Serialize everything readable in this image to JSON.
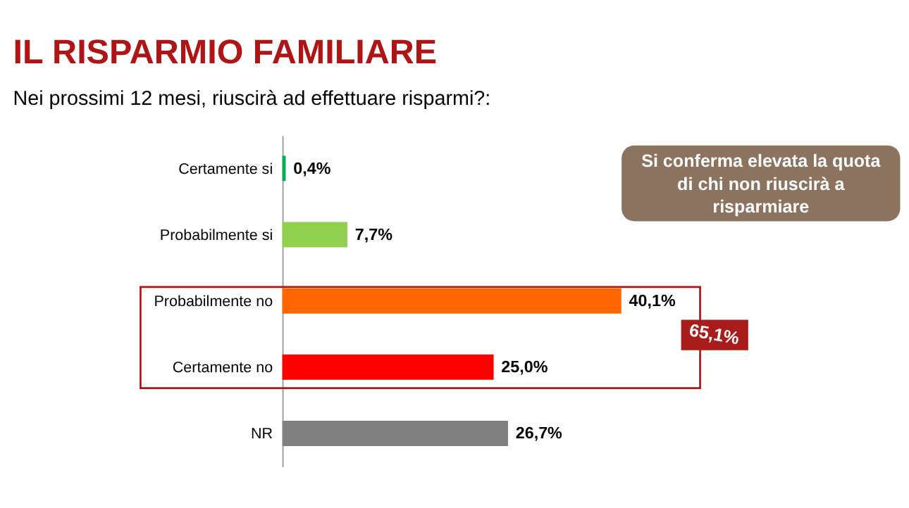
{
  "chart_data": {
    "type": "bar",
    "orientation": "horizontal",
    "title": "IL RISPARMIO FAMILIARE",
    "subtitle": "Nei prossimi 12 mesi, riuscirà ad effettuare risparmi?:",
    "categories": [
      "Certamente si",
      "Probabilmente si",
      "Probabilmente no",
      "Certamente no",
      "NR"
    ],
    "values": [
      0.4,
      7.7,
      40.1,
      25.0,
      26.7
    ],
    "colors": [
      "#00b050",
      "#92d050",
      "#ff6600",
      "#ff0000",
      "#808080"
    ],
    "value_labels": [
      "0,4%",
      "7,7%",
      "40,1%",
      "25,0%",
      "26,7%"
    ],
    "annotations": [
      "Si conferma elevata la quota di chi non riuscirà a risparmiare",
      "65,1%"
    ],
    "grid": false
  }
}
